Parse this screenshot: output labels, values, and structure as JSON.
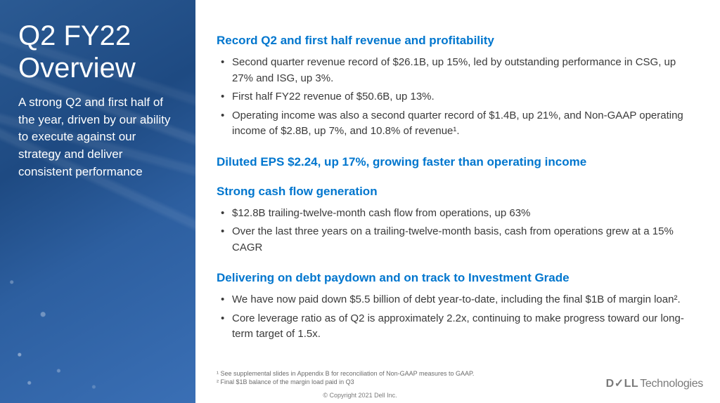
{
  "colors": {
    "accent": "#0076ce",
    "body_text": "#3a3a3a",
    "sidebar_bg_start": "#2b5a93",
    "sidebar_bg_end": "#3a6fb5",
    "footnote": "#6b6b6b",
    "logo": "#7a7a7a"
  },
  "typography": {
    "title_fontsize": 40,
    "subtitle_fontsize": 17,
    "heading_fontsize": 17,
    "body_fontsize": 15,
    "footnote_fontsize": 9
  },
  "sidebar": {
    "title": "Q2 FY22 Overview",
    "subtitle": "A strong Q2 and first half of the year, driven by our ability to execute against our strategy and deliver consistent performance"
  },
  "sections": [
    {
      "heading": "Record Q2 and first half revenue and profitability",
      "bullets": [
        "Second quarter revenue record of $26.1B, up 15%, led by outstanding performance in CSG, up 27% and ISG, up 3%.",
        "First half FY22 revenue of $50.6B, up 13%.",
        "Operating income was also a second quarter record of $1.4B, up 21%, and Non-GAAP operating income of $2.8B, up 7%, and 10.8% of revenue¹."
      ]
    },
    {
      "heading": "Diluted EPS $2.24, up 17%, growing faster than operating income",
      "bullets": []
    },
    {
      "heading": "Strong cash flow generation",
      "bullets": [
        "$12.8B trailing-twelve-month cash flow from operations, up 63%",
        "Over the last three years on a trailing-twelve-month basis, cash from operations grew at a 15% CAGR"
      ]
    },
    {
      "heading": "Delivering on debt paydown and on track to Investment Grade",
      "bullets": [
        "We have now paid down $5.5 billion of debt year-to-date, including the final $1B of margin loan².",
        "Core leverage ratio as of Q2 is approximately 2.2x, continuing to make progress toward our long-term target of 1.5x."
      ]
    }
  ],
  "footnotes": [
    "¹ See supplemental slides in Appendix B for reconciliation of Non-GAAP measures to GAAP.",
    "² Final $1B balance of the margin load paid in Q3"
  ],
  "copyright": "© Copyright 2021 Dell Inc.",
  "logo": {
    "part1": "D✓LL",
    "part2": "Technologies"
  }
}
